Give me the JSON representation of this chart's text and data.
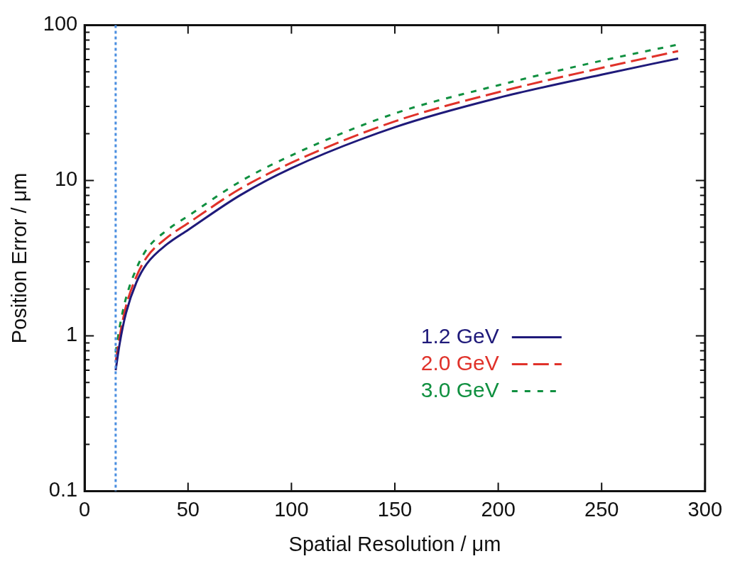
{
  "chart_data": {
    "type": "line",
    "xlabel": "Spatial Resolution / μm",
    "ylabel": "Position Error / μm",
    "log": "y",
    "legend": "right",
    "xlim": [
      0,
      300
    ],
    "ylim": [
      0.1,
      100
    ],
    "xticks": [
      0,
      50,
      100,
      150,
      200,
      250,
      300
    ],
    "yticks": [
      0.1,
      {
        "value": 0.2,
        "label": null
      },
      {
        "value": 0.3,
        "label": null
      },
      {
        "value": 0.4,
        "label": null
      },
      {
        "value": 0.5,
        "label": null
      },
      {
        "value": 0.6,
        "label": null
      },
      {
        "value": 0.7,
        "label": null
      },
      {
        "value": 0.8,
        "label": null
      },
      {
        "value": 0.9,
        "label": null
      },
      1,
      {
        "value": 2,
        "label": null
      },
      {
        "value": 3,
        "label": null
      },
      {
        "value": 4,
        "label": null
      },
      {
        "value": 5,
        "label": null
      },
      {
        "value": 6,
        "label": null
      },
      {
        "value": 7,
        "label": null
      },
      {
        "value": 8,
        "label": null
      },
      {
        "value": 9,
        "label": null
      },
      10,
      {
        "value": 20,
        "label": null
      },
      {
        "value": 30,
        "label": null
      },
      {
        "value": 40,
        "label": null
      },
      {
        "value": 50,
        "label": null
      },
      {
        "value": 60,
        "label": null
      },
      {
        "value": 70,
        "label": null
      },
      {
        "value": 80,
        "label": null
      },
      {
        "value": 90,
        "label": null
      },
      100
    ],
    "x": [
      15,
      17,
      20,
      25,
      30,
      40,
      50,
      75,
      100,
      150,
      200,
      250,
      287
    ],
    "series": [
      {
        "name": "1.2 GeV",
        "color": "#1f1a7a",
        "line_style": "solid",
        "values": [
          0.6,
          0.9,
          1.4,
          2.2,
          2.9,
          3.9,
          4.8,
          8,
          12,
          22,
          34,
          48,
          61
        ]
      },
      {
        "name": "2.0 GeV",
        "color": "#e0322a",
        "line_style": "dashed",
        "values": [
          0.68,
          1.0,
          1.55,
          2.4,
          3.2,
          4.3,
          5.3,
          8.8,
          13,
          24,
          37,
          53,
          68
        ]
      },
      {
        "name": "3.0 GeV",
        "color": "#109040",
        "line_style": "dotted",
        "values": [
          0.78,
          1.15,
          1.75,
          2.7,
          3.6,
          4.8,
          5.9,
          9.8,
          14.5,
          27,
          41,
          59,
          75
        ]
      }
    ],
    "ref_lines": [
      {
        "axis": "x",
        "value": 15,
        "color": "#4a8ee0",
        "line_style": "dotted"
      }
    ]
  }
}
